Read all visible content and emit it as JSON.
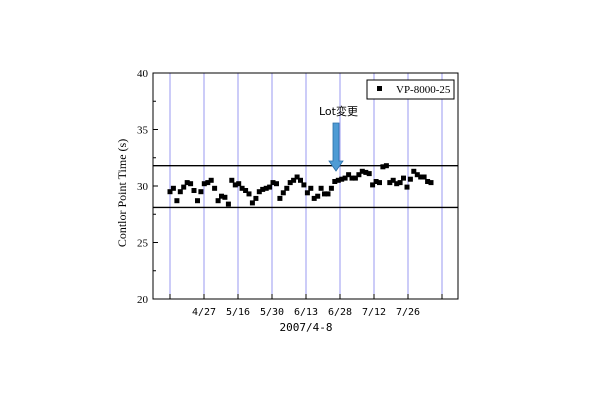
{
  "chart_data": {
    "type": "scatter",
    "title": "",
    "xlabel": "2007/4-8",
    "ylabel": "Contlor Point Time (s)",
    "ylim": [
      20,
      40
    ],
    "yticks": [
      20,
      25,
      30,
      35,
      40
    ],
    "xticks": [
      "4/27",
      "5/16",
      "5/30",
      "6/13",
      "6/28",
      "7/12",
      "7/26"
    ],
    "grid": "vertical",
    "legend_position": "top-right",
    "series": [
      {
        "name": "VP-8000-25",
        "marker": "square",
        "color": "#000000",
        "values": [
          29.5,
          29.8,
          28.7,
          29.5,
          29.9,
          30.3,
          30.2,
          29.6,
          28.7,
          29.5,
          30.2,
          30.3,
          30.5,
          29.8,
          28.7,
          29.1,
          29.0,
          28.4,
          30.5,
          30.1,
          30.2,
          29.8,
          29.6,
          29.3,
          28.5,
          28.9,
          29.5,
          29.7,
          29.8,
          29.9,
          30.3,
          30.2,
          28.9,
          29.4,
          29.8,
          30.3,
          30.5,
          30.8,
          30.5,
          30.1,
          29.4,
          29.8,
          28.9,
          29.1,
          29.8,
          29.3,
          29.3,
          29.8,
          30.4,
          30.5,
          30.6,
          30.7,
          31.0,
          30.7,
          30.7,
          31.0,
          31.3,
          31.2,
          31.1,
          30.1,
          30.4,
          30.3,
          31.7,
          31.8,
          30.3,
          30.5,
          30.2,
          30.3,
          30.7,
          29.9,
          30.6,
          31.3,
          31.0,
          30.8,
          30.8,
          30.4,
          30.3
        ]
      }
    ],
    "reference_lines": [
      31.8,
      28.1
    ],
    "annotation": {
      "text": "Lot変更",
      "x_index": 48
    }
  }
}
